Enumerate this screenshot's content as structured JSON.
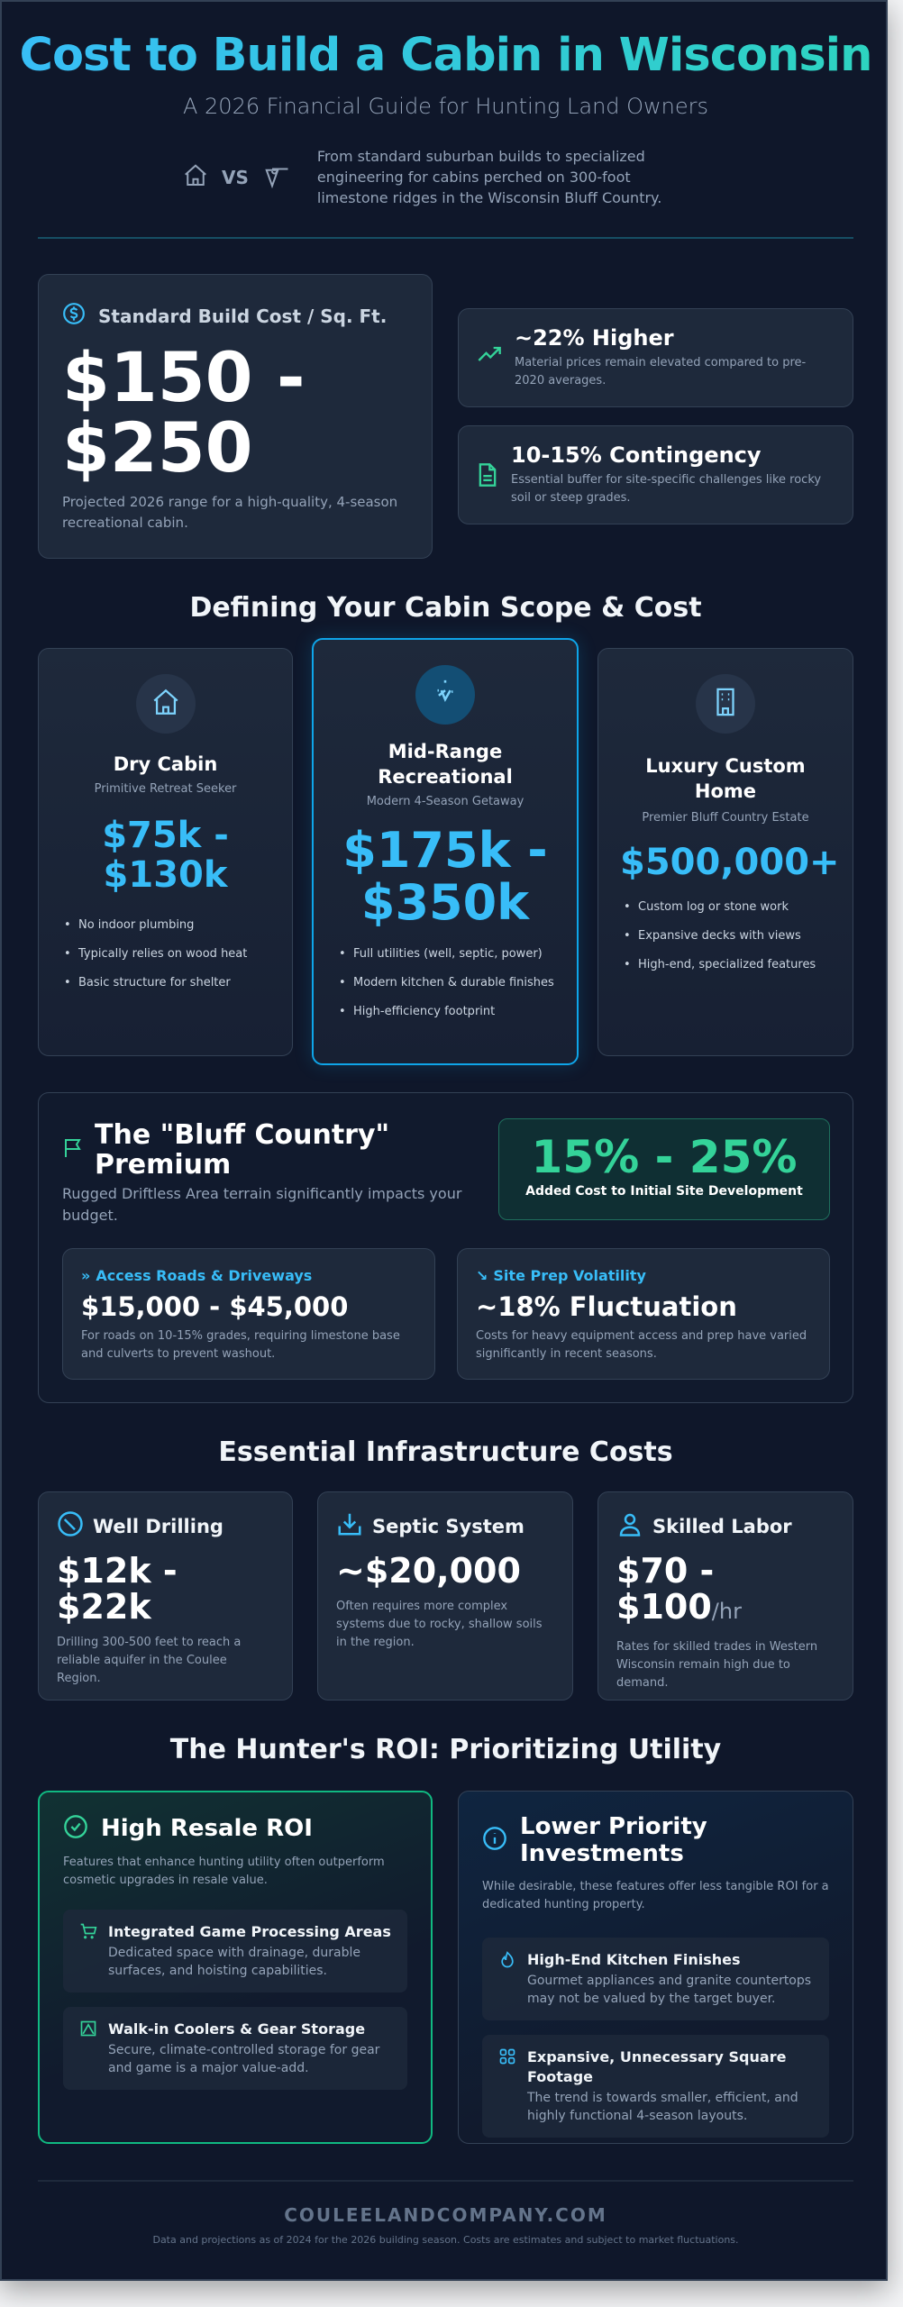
{
  "header": {
    "title": "Cost to Build a Cabin in Wisconsin",
    "subtitle": "A 2026 Financial Guide for Hunting Land Owners",
    "vs": "VS",
    "intro": "From standard suburban builds to specialized engineering for cabins perched on 300-foot limestone ridges in the Wisconsin Bluff Country.",
    "icons": [
      "house-icon",
      "mountain-pin-icon"
    ]
  },
  "stats": {
    "main": {
      "label": "Standard Build Cost / Sq. Ft.",
      "value": "$150 - $250",
      "note": "Projected 2026 range for a high-quality, 4-season recreational cabin.",
      "icon": "dollar-icon"
    },
    "side": [
      {
        "title": "~22% Higher",
        "desc": "Material prices remain elevated compared to pre-2020 averages.",
        "icon": "trending-up-icon"
      },
      {
        "title": "10-15% Contingency",
        "desc": "Essential buffer for site-specific challenges like rocky soil or steep grades.",
        "icon": "document-icon"
      }
    ]
  },
  "scope": {
    "heading": "Defining Your Cabin Scope & Cost",
    "tiers": [
      {
        "name": "Dry Cabin",
        "tag": "Primitive Retreat Seeker",
        "price": "$75k - $130k",
        "items": [
          "No indoor plumbing",
          "Typically relies on wood heat",
          "Basic structure for shelter"
        ],
        "icon": "house-icon"
      },
      {
        "name": "Mid-Range Recreational",
        "tag": "Modern 4-Season Getaway",
        "price": "$175k - $350k",
        "items": [
          "Full utilities (well, septic, power)",
          "Modern kitchen & durable finishes",
          "High-efficiency footprint"
        ],
        "icon": "sparkle-icon"
      },
      {
        "name": "Luxury Custom Home",
        "tag": "Premier Bluff Country Estate",
        "price": "$500,000+",
        "items": [
          "Custom log or stone work",
          "Expansive decks with views",
          "High-end, specialized features"
        ],
        "icon": "building-icon"
      }
    ]
  },
  "bluff": {
    "title": "The \"Bluff Country\" Premium",
    "desc": "Rugged Driftless Area terrain significantly impacts your budget.",
    "badge_value": "15% - 25%",
    "badge_label": "Added Cost to Initial Site Development",
    "cards": [
      {
        "label": "Access Roads & Driveways",
        "value": "$15,000 - $45,000",
        "desc": "For roads on 10-15% grades, requiring limestone base and culverts to prevent washout.",
        "icon": "chevrons-right-icon"
      },
      {
        "label": "Site Prep Volatility",
        "value": "~18% Fluctuation",
        "desc": "Costs for heavy equipment access and prep have varied significantly in recent seasons.",
        "icon": "trending-down-icon"
      }
    ]
  },
  "infra": {
    "heading": "Essential Infrastructure Costs",
    "cards": [
      {
        "title": "Well Drilling",
        "value": "$12k - $22k",
        "unit": "",
        "desc": "Drilling 300-500 feet to reach a reliable aquifer in the Coulee Region.",
        "icon": "drill-icon"
      },
      {
        "title": "Septic System",
        "value": "~$20,000",
        "unit": "",
        "desc": "Often requires more complex systems due to rocky, shallow soils in the region.",
        "icon": "download-tray-icon"
      },
      {
        "title": "Skilled Labor",
        "value": "$70 - $100",
        "unit": "/hr",
        "desc": "Rates for skilled trades in Western Wisconsin remain high due to demand.",
        "icon": "worker-icon"
      }
    ]
  },
  "roi": {
    "heading": "The Hunter's ROI: Prioritizing Utility",
    "high": {
      "title": "High Resale ROI",
      "desc": "Features that enhance hunting utility often outperform cosmetic upgrades in resale value.",
      "items": [
        {
          "title": "Integrated Game Processing Areas",
          "desc": "Dedicated space with drainage, durable surfaces, and hoisting capabilities.",
          "icon": "cart-icon"
        },
        {
          "title": "Walk-in Coolers & Gear Storage",
          "desc": "Secure, climate-controlled storage for gear and game is a major value-add.",
          "icon": "storage-icon"
        }
      ]
    },
    "low": {
      "title": "Lower Priority Investments",
      "desc": "While desirable, these features offer less tangible ROI for a dedicated hunting property.",
      "items": [
        {
          "title": "High-End Kitchen Finishes",
          "desc": "Gourmet appliances and granite countertops may not be valued by the target buyer.",
          "icon": "flame-icon"
        },
        {
          "title": "Expansive, Unnecessary Square Footage",
          "desc": "The trend is towards smaller, efficient, and highly functional 4-season layouts.",
          "icon": "grid-icon"
        }
      ]
    }
  },
  "footer": {
    "brand": "COULEELANDCOMPANY.COM",
    "disclaimer": "Data and projections as of 2024 for the 2026 building season. Costs are estimates and subject to market fluctuations."
  },
  "colors": {
    "background": "#0f172a",
    "card": "#1e293b",
    "blue": "#38bdf8",
    "green": "#34d399"
  }
}
